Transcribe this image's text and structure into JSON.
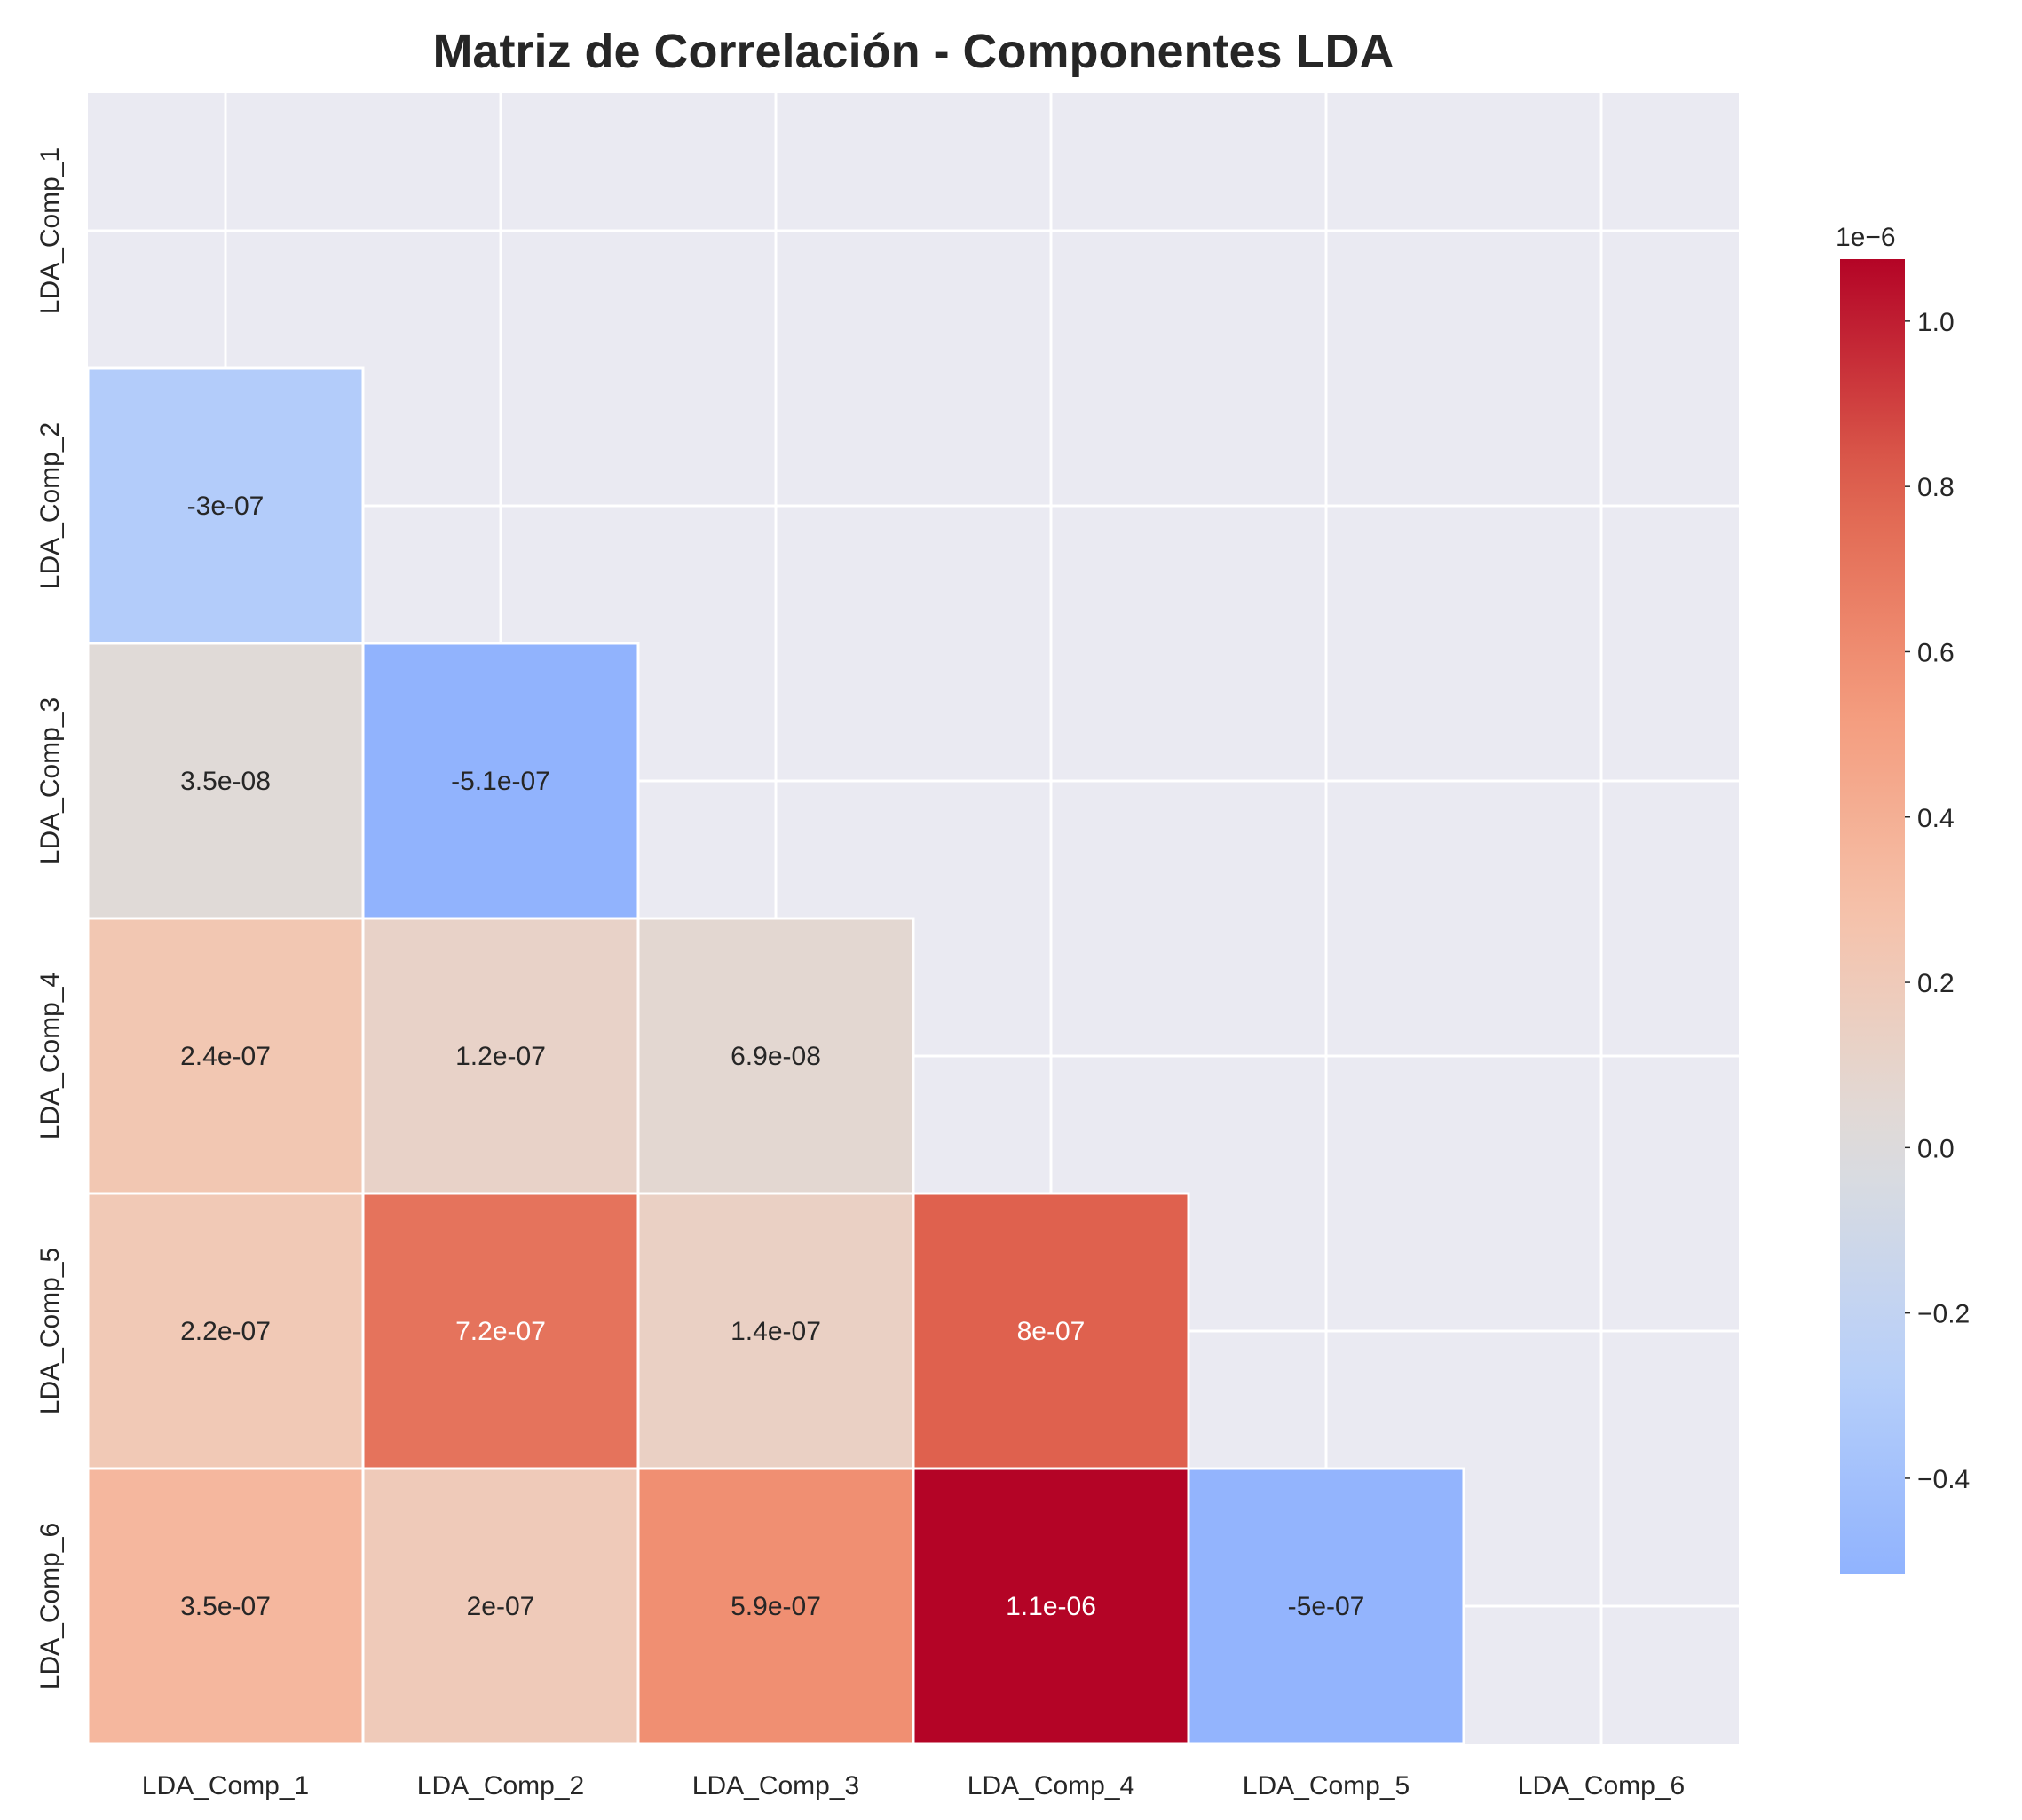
{
  "chart_data": {
    "type": "heatmap",
    "title": "Matriz de Correlación - Componentes LDA",
    "row_labels": [
      "LDA_Comp_1",
      "LDA_Comp_2",
      "LDA_Comp_3",
      "LDA_Comp_4",
      "LDA_Comp_5",
      "LDA_Comp_6"
    ],
    "col_labels": [
      "LDA_Comp_1",
      "LDA_Comp_2",
      "LDA_Comp_3",
      "LDA_Comp_4",
      "LDA_Comp_5",
      "LDA_Comp_6"
    ],
    "mask": "upper triangle including diagonal",
    "cells": [
      {
        "row": 1,
        "col": 0,
        "value": -3e-07,
        "label": "-3e-07"
      },
      {
        "row": 2,
        "col": 0,
        "value": 3.5e-08,
        "label": "3.5e-08"
      },
      {
        "row": 2,
        "col": 1,
        "value": -5.1e-07,
        "label": "-5.1e-07"
      },
      {
        "row": 3,
        "col": 0,
        "value": 2.4e-07,
        "label": "2.4e-07"
      },
      {
        "row": 3,
        "col": 1,
        "value": 1.2e-07,
        "label": "1.2e-07"
      },
      {
        "row": 3,
        "col": 2,
        "value": 6.9e-08,
        "label": "6.9e-08"
      },
      {
        "row": 4,
        "col": 0,
        "value": 2.2e-07,
        "label": "2.2e-07"
      },
      {
        "row": 4,
        "col": 1,
        "value": 7.2e-07,
        "label": "7.2e-07"
      },
      {
        "row": 4,
        "col": 2,
        "value": 1.4e-07,
        "label": "1.4e-07"
      },
      {
        "row": 4,
        "col": 3,
        "value": 8e-07,
        "label": "8e-07"
      },
      {
        "row": 5,
        "col": 0,
        "value": 3.5e-07,
        "label": "3.5e-07"
      },
      {
        "row": 5,
        "col": 1,
        "value": 2e-07,
        "label": "2e-07"
      },
      {
        "row": 5,
        "col": 2,
        "value": 5.9e-07,
        "label": "5.9e-07"
      },
      {
        "row": 5,
        "col": 3,
        "value": 1.075e-06,
        "label": "1.1e-06"
      },
      {
        "row": 5,
        "col": 4,
        "value": -5e-07,
        "label": "-5e-07"
      }
    ],
    "colormap": "coolwarm",
    "center": 0,
    "colorbar": {
      "offset_label": "1e−6",
      "range": [
        -0.516,
        1.075
      ],
      "ticks": [
        1.0,
        0.8,
        0.6,
        0.4,
        0.2,
        0.0,
        -0.2,
        -0.4
      ],
      "tick_labels": [
        "1.0",
        "0.8",
        "0.6",
        "0.4",
        "0.2",
        "0.0",
        "−0.2",
        "−0.4"
      ]
    },
    "colors": {
      "masked_background": "#eaeaf2",
      "grid": "#ffffff",
      "text_dark": "#262626",
      "text_light": "#ffffff"
    }
  }
}
